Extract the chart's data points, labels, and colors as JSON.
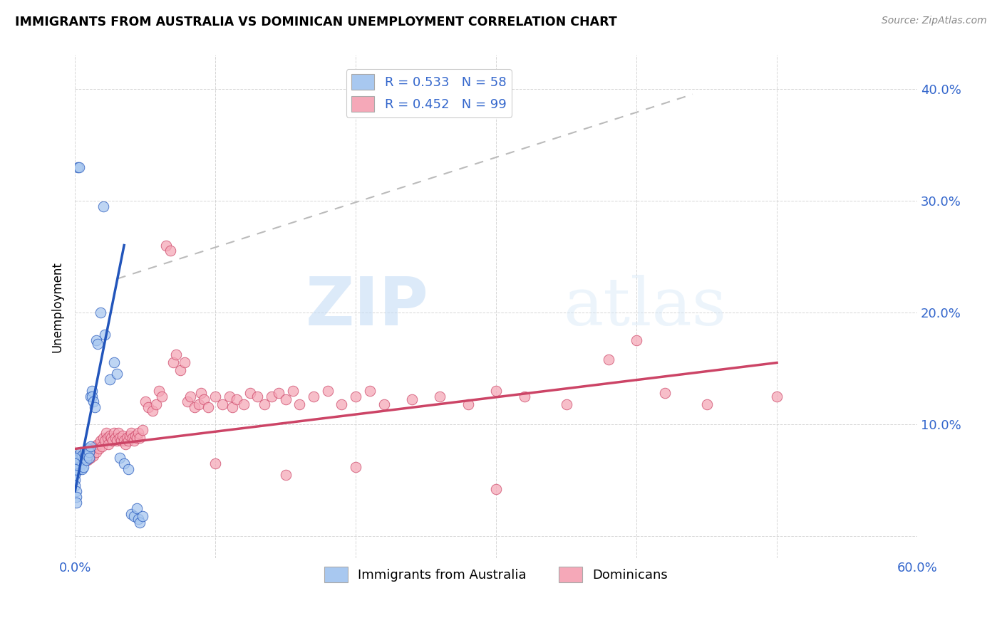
{
  "title": "IMMIGRANTS FROM AUSTRALIA VS DOMINICAN UNEMPLOYMENT CORRELATION CHART",
  "source": "Source: ZipAtlas.com",
  "ylabel": "Unemployment",
  "xlim": [
    0.0,
    0.6
  ],
  "ylim": [
    -0.02,
    0.43
  ],
  "yticks": [
    0.0,
    0.1,
    0.2,
    0.3,
    0.4
  ],
  "ytick_labels_right": [
    "",
    "10.0%",
    "20.0%",
    "30.0%",
    "40.0%"
  ],
  "xtick_labels": [
    "0.0%",
    "",
    "",
    "",
    "",
    "",
    "60.0%"
  ],
  "color_blue": "#A8C8F0",
  "color_pink": "#F5A8B8",
  "line_blue": "#2255BB",
  "line_pink": "#CC4466",
  "watermark_zip": "ZIP",
  "watermark_atlas": "atlas",
  "blue_points": [
    [
      0.001,
      0.065
    ],
    [
      0.001,
      0.06
    ],
    [
      0.001,
      0.058
    ],
    [
      0.002,
      0.072
    ],
    [
      0.002,
      0.068
    ],
    [
      0.002,
      0.062
    ],
    [
      0.003,
      0.07
    ],
    [
      0.003,
      0.065
    ],
    [
      0.003,
      0.06
    ],
    [
      0.004,
      0.075
    ],
    [
      0.004,
      0.068
    ],
    [
      0.005,
      0.072
    ],
    [
      0.005,
      0.065
    ],
    [
      0.005,
      0.06
    ],
    [
      0.006,
      0.068
    ],
    [
      0.006,
      0.062
    ],
    [
      0.007,
      0.075
    ],
    [
      0.007,
      0.07
    ],
    [
      0.008,
      0.072
    ],
    [
      0.008,
      0.068
    ],
    [
      0.009,
      0.078
    ],
    [
      0.009,
      0.072
    ],
    [
      0.01,
      0.075
    ],
    [
      0.01,
      0.07
    ],
    [
      0.011,
      0.08
    ],
    [
      0.011,
      0.125
    ],
    [
      0.012,
      0.13
    ],
    [
      0.012,
      0.125
    ],
    [
      0.013,
      0.12
    ],
    [
      0.014,
      0.115
    ],
    [
      0.015,
      0.175
    ],
    [
      0.016,
      0.172
    ],
    [
      0.018,
      0.2
    ],
    [
      0.02,
      0.295
    ],
    [
      0.021,
      0.18
    ],
    [
      0.025,
      0.14
    ],
    [
      0.028,
      0.155
    ],
    [
      0.03,
      0.145
    ],
    [
      0.032,
      0.07
    ],
    [
      0.035,
      0.065
    ],
    [
      0.038,
      0.06
    ],
    [
      0.04,
      0.02
    ],
    [
      0.042,
      0.018
    ],
    [
      0.044,
      0.025
    ],
    [
      0.045,
      0.015
    ],
    [
      0.046,
      0.012
    ],
    [
      0.048,
      0.018
    ],
    [
      0.002,
      0.33
    ],
    [
      0.003,
      0.33
    ],
    [
      0.0,
      0.07
    ],
    [
      0.0,
      0.065
    ],
    [
      0.0,
      0.06
    ],
    [
      0.0,
      0.055
    ],
    [
      0.0,
      0.05
    ],
    [
      0.0,
      0.045
    ],
    [
      0.001,
      0.04
    ],
    [
      0.001,
      0.035
    ],
    [
      0.001,
      0.03
    ]
  ],
  "pink_points": [
    [
      0.002,
      0.068
    ],
    [
      0.003,
      0.072
    ],
    [
      0.004,
      0.065
    ],
    [
      0.005,
      0.07
    ],
    [
      0.006,
      0.068
    ],
    [
      0.007,
      0.075
    ],
    [
      0.008,
      0.072
    ],
    [
      0.009,
      0.068
    ],
    [
      0.01,
      0.075
    ],
    [
      0.011,
      0.07
    ],
    [
      0.012,
      0.078
    ],
    [
      0.013,
      0.072
    ],
    [
      0.014,
      0.08
    ],
    [
      0.015,
      0.075
    ],
    [
      0.016,
      0.082
    ],
    [
      0.017,
      0.078
    ],
    [
      0.018,
      0.085
    ],
    [
      0.019,
      0.08
    ],
    [
      0.02,
      0.088
    ],
    [
      0.021,
      0.085
    ],
    [
      0.022,
      0.092
    ],
    [
      0.023,
      0.088
    ],
    [
      0.024,
      0.082
    ],
    [
      0.025,
      0.09
    ],
    [
      0.026,
      0.088
    ],
    [
      0.027,
      0.085
    ],
    [
      0.028,
      0.092
    ],
    [
      0.029,
      0.088
    ],
    [
      0.03,
      0.085
    ],
    [
      0.031,
      0.092
    ],
    [
      0.032,
      0.088
    ],
    [
      0.033,
      0.085
    ],
    [
      0.034,
      0.09
    ],
    [
      0.035,
      0.085
    ],
    [
      0.036,
      0.082
    ],
    [
      0.037,
      0.088
    ],
    [
      0.038,
      0.085
    ],
    [
      0.039,
      0.09
    ],
    [
      0.04,
      0.092
    ],
    [
      0.041,
      0.088
    ],
    [
      0.042,
      0.085
    ],
    [
      0.043,
      0.09
    ],
    [
      0.044,
      0.088
    ],
    [
      0.045,
      0.092
    ],
    [
      0.046,
      0.088
    ],
    [
      0.048,
      0.095
    ],
    [
      0.05,
      0.12
    ],
    [
      0.052,
      0.115
    ],
    [
      0.055,
      0.112
    ],
    [
      0.058,
      0.118
    ],
    [
      0.06,
      0.13
    ],
    [
      0.062,
      0.125
    ],
    [
      0.065,
      0.26
    ],
    [
      0.068,
      0.255
    ],
    [
      0.07,
      0.155
    ],
    [
      0.072,
      0.162
    ],
    [
      0.075,
      0.148
    ],
    [
      0.078,
      0.155
    ],
    [
      0.08,
      0.12
    ],
    [
      0.082,
      0.125
    ],
    [
      0.085,
      0.115
    ],
    [
      0.088,
      0.118
    ],
    [
      0.09,
      0.128
    ],
    [
      0.092,
      0.122
    ],
    [
      0.095,
      0.115
    ],
    [
      0.1,
      0.125
    ],
    [
      0.105,
      0.118
    ],
    [
      0.11,
      0.125
    ],
    [
      0.112,
      0.115
    ],
    [
      0.115,
      0.122
    ],
    [
      0.12,
      0.118
    ],
    [
      0.125,
      0.128
    ],
    [
      0.13,
      0.125
    ],
    [
      0.135,
      0.118
    ],
    [
      0.14,
      0.125
    ],
    [
      0.145,
      0.128
    ],
    [
      0.15,
      0.122
    ],
    [
      0.155,
      0.13
    ],
    [
      0.16,
      0.118
    ],
    [
      0.17,
      0.125
    ],
    [
      0.18,
      0.13
    ],
    [
      0.19,
      0.118
    ],
    [
      0.2,
      0.125
    ],
    [
      0.21,
      0.13
    ],
    [
      0.22,
      0.118
    ],
    [
      0.24,
      0.122
    ],
    [
      0.26,
      0.125
    ],
    [
      0.28,
      0.118
    ],
    [
      0.3,
      0.13
    ],
    [
      0.32,
      0.125
    ],
    [
      0.35,
      0.118
    ],
    [
      0.38,
      0.158
    ],
    [
      0.4,
      0.175
    ],
    [
      0.42,
      0.128
    ],
    [
      0.45,
      0.118
    ],
    [
      0.5,
      0.125
    ],
    [
      0.1,
      0.065
    ],
    [
      0.15,
      0.055
    ],
    [
      0.2,
      0.062
    ],
    [
      0.3,
      0.042
    ]
  ],
  "blue_line_x": [
    0.0,
    0.035
  ],
  "blue_line_y": [
    0.04,
    0.26
  ],
  "dash_line_x": [
    0.03,
    0.44
  ],
  "dash_line_y": [
    0.23,
    0.395
  ],
  "pink_line_x": [
    0.0,
    0.5
  ],
  "pink_line_y": [
    0.078,
    0.155
  ]
}
